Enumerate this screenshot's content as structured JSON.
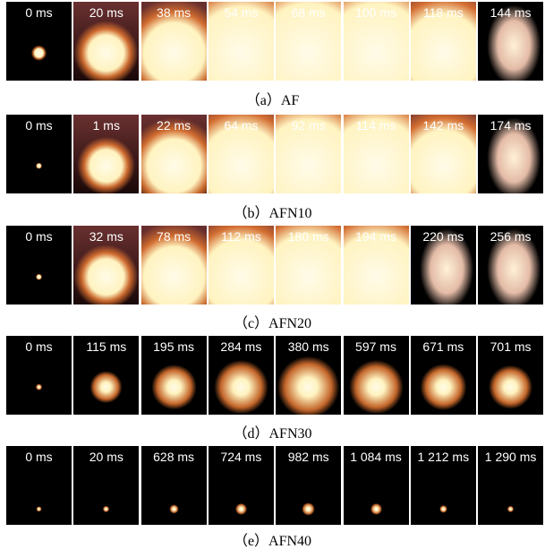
{
  "rows": [
    {
      "frames": [
        "0 ms",
        "20 ms",
        "38 ms",
        "54 ms",
        "68 ms",
        "100 ms",
        "118 ms",
        "144 ms"
      ],
      "caption": "（a）AF"
    },
    {
      "frames": [
        "0 ms",
        "1 ms",
        "22 ms",
        "64 ms",
        "92 ms",
        "114 ms",
        "142 ms",
        "174 ms"
      ],
      "caption": "（b）AFN10"
    },
    {
      "frames": [
        "0 ms",
        "32 ms",
        "78 ms",
        "112 ms",
        "180 ms",
        "194 ms",
        "220 ms",
        "256 ms"
      ],
      "caption": "（c）AFN20"
    },
    {
      "frames": [
        "0 ms",
        "115 ms",
        "195 ms",
        "284 ms",
        "380 ms",
        "597 ms",
        "671 ms",
        "701 ms"
      ],
      "caption": "（d）AFN30"
    },
    {
      "frames": [
        "0 ms",
        "20 ms",
        "628 ms",
        "724 ms",
        "982 ms",
        "1 084 ms",
        "1 212 ms",
        "1 290 ms"
      ],
      "caption": "（e）AFN40"
    }
  ]
}
